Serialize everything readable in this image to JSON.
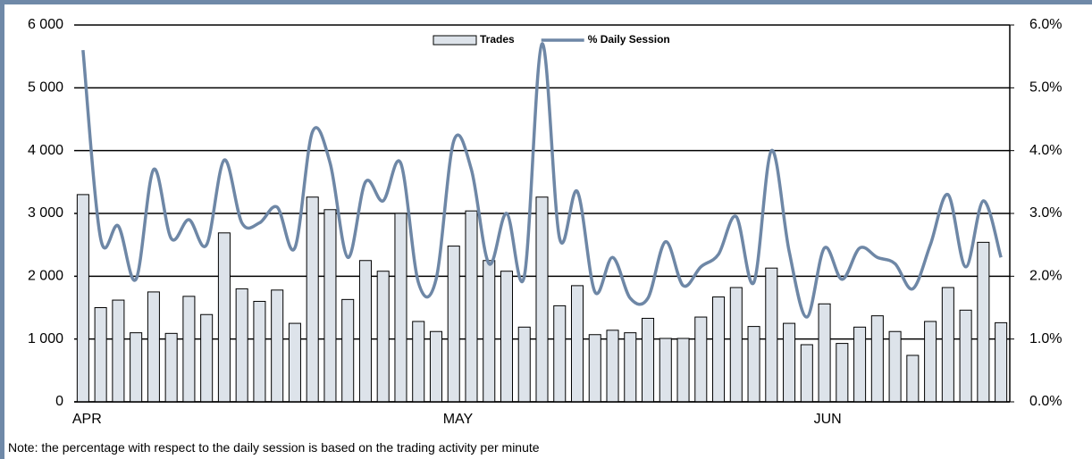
{
  "chart_data": {
    "type": "bar-line",
    "categories": [
      "APR",
      null,
      null,
      null,
      null,
      null,
      null,
      null,
      null,
      null,
      null,
      null,
      null,
      null,
      null,
      null,
      null,
      null,
      null,
      null,
      null,
      "MAY",
      null,
      null,
      null,
      null,
      null,
      null,
      null,
      null,
      null,
      null,
      null,
      null,
      null,
      null,
      null,
      null,
      null,
      null,
      null,
      null,
      "JUN",
      null,
      null,
      null,
      null,
      null,
      null,
      null,
      null,
      null,
      null
    ],
    "series": [
      {
        "name": "Trades",
        "type": "bar",
        "color": "#dde3ea",
        "values": [
          3300,
          1500,
          1620,
          1100,
          1750,
          1090,
          1680,
          1390,
          2690,
          1800,
          1600,
          1780,
          1250,
          3260,
          3060,
          1630,
          2250,
          2080,
          3000,
          1280,
          1120,
          2480,
          3040,
          2250,
          2080,
          1190,
          3260,
          1530,
          1850,
          1070,
          1140,
          1100,
          1330,
          1010,
          1010,
          1350,
          1670,
          1820,
          1200,
          2130,
          1250,
          910,
          1560,
          930,
          1190,
          1370,
          1120,
          740,
          1280,
          1820,
          1460,
          2540,
          1260
        ]
      },
      {
        "name": "% Daily Session",
        "type": "line",
        "axis": "y2",
        "color": "#6e87a6",
        "values": [
          5.6,
          2.6,
          2.8,
          1.95,
          3.7,
          2.6,
          2.9,
          2.5,
          3.85,
          2.85,
          2.85,
          3.1,
          2.45,
          4.3,
          3.8,
          2.3,
          3.5,
          3.2,
          3.8,
          1.9,
          1.95,
          4.15,
          3.7,
          2.2,
          3.0,
          2.0,
          5.7,
          2.6,
          3.35,
          1.75,
          2.3,
          1.65,
          1.65,
          2.55,
          1.85,
          2.15,
          2.35,
          2.95,
          1.9,
          4.0,
          2.4,
          1.35,
          2.45,
          1.95,
          2.45,
          2.3,
          2.2,
          1.8,
          2.5,
          3.3,
          2.15,
          3.2,
          2.3
        ]
      }
    ],
    "ylim": [
      0,
      6000
    ],
    "yticks": [
      0,
      {
        "value": 1000,
        "label": "1 000"
      },
      {
        "value": 2000,
        "label": "2 000"
      },
      {
        "value": 3000,
        "label": "3 000"
      },
      {
        "value": 4000,
        "label": "4 000"
      },
      {
        "value": 5000,
        "label": "5 000"
      },
      {
        "value": 6000,
        "label": "6 000"
      }
    ],
    "y2lim": [
      0,
      6
    ],
    "y2ticks": [
      {
        "value": 0,
        "label": "0.0%"
      },
      {
        "value": 1,
        "label": "1.0%"
      },
      {
        "value": 2,
        "label": "2.0%"
      },
      {
        "value": 3,
        "label": "3.0%"
      },
      {
        "value": 4,
        "label": "4.0%"
      },
      {
        "value": 5,
        "label": "5.0%"
      },
      {
        "value": 6,
        "label": "6.0%"
      }
    ],
    "grid": true,
    "legend": "top",
    "note": "Note: the percentage with respect to the daily session is based on the trading activity per minute"
  }
}
